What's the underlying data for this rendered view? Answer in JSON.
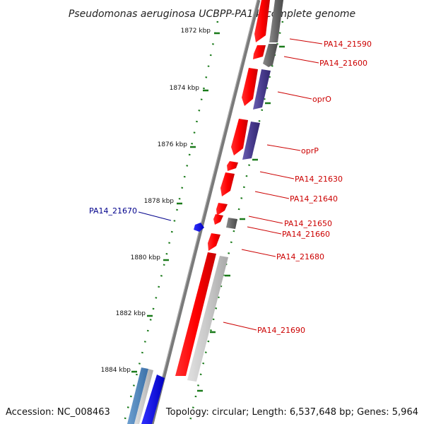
{
  "title": "Pseudomonas aeruginosa UCBPP-PA14, complete genome",
  "footer": {
    "accession": "Accession: NC_008463",
    "summary": "Topology: circular; Length: 6,537,648 bp; Genes: 5,964"
  },
  "colors": {
    "forward_gene": "#ff0000",
    "reverse_gene_gray": "#666666",
    "reverse_gene_purple": "#4a3d8f",
    "reverse_gene_light": "#c8c8c8",
    "highlight_gene": "#0000ff",
    "label_red": "#cc0000",
    "label_blue": "#00008b",
    "tick_green": "#1a7a1a",
    "backbone": "#808080"
  },
  "kbp_ticks": [
    "1872 kbp",
    "1874 kbp",
    "1876 kbp",
    "1878 kbp",
    "1880 kbp",
    "1882 kbp",
    "1884 kbp"
  ],
  "gene_labels": [
    {
      "text": "PA14_21590",
      "kind": "red"
    },
    {
      "text": "PA14_21600",
      "kind": "red"
    },
    {
      "text": "oprO",
      "kind": "red"
    },
    {
      "text": "oprP",
      "kind": "red"
    },
    {
      "text": "PA14_21630",
      "kind": "red"
    },
    {
      "text": "PA14_21640",
      "kind": "red"
    },
    {
      "text": "PA14_21650",
      "kind": "red"
    },
    {
      "text": "PA14_21660",
      "kind": "red"
    },
    {
      "text": "PA14_21680",
      "kind": "red"
    },
    {
      "text": "PA14_21690",
      "kind": "red"
    },
    {
      "text": "PA14_21670",
      "kind": "blue"
    }
  ]
}
